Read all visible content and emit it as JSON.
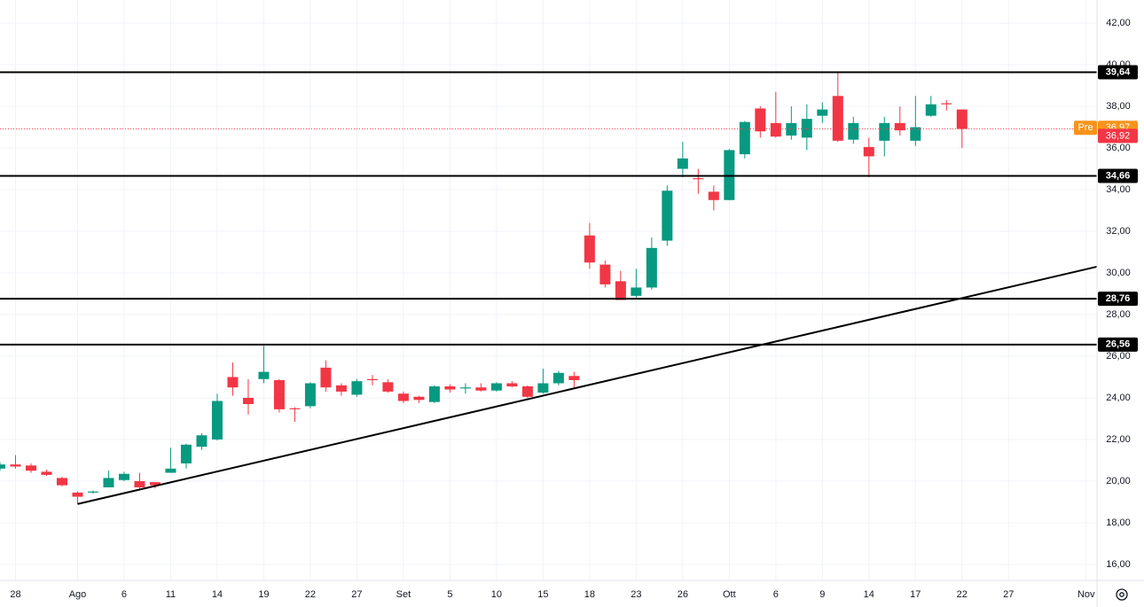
{
  "chart_data": {
    "type": "candlestick",
    "x": [
      -1,
      0,
      1,
      2,
      3,
      4,
      5,
      6,
      7,
      8,
      9,
      10,
      11,
      12,
      13,
      14,
      15,
      16,
      17,
      18,
      19,
      20,
      21,
      22,
      23,
      24,
      25,
      26,
      27,
      28,
      29,
      30,
      31,
      32,
      33,
      34,
      35,
      36,
      37,
      38,
      39,
      40,
      41,
      42,
      43,
      44,
      45,
      46,
      47,
      48,
      49,
      50,
      51,
      52,
      53,
      54,
      55,
      56,
      57,
      58,
      59,
      60,
      61
    ],
    "open": [
      20.6,
      20.8,
      20.75,
      20.45,
      20.15,
      19.45,
      19.45,
      19.7,
      20.05,
      20.0,
      19.95,
      20.4,
      20.85,
      21.65,
      22.0,
      25.0,
      24.0,
      24.9,
      24.85,
      23.5,
      23.6,
      25.45,
      24.6,
      24.15,
      24.9,
      24.75,
      24.2,
      24.05,
      23.8,
      24.55,
      24.45,
      24.5,
      24.35,
      24.7,
      24.55,
      24.25,
      24.7,
      25.05,
      31.8,
      30.4,
      29.6,
      28.9,
      29.3,
      31.55,
      35.0,
      34.55,
      33.9,
      33.5,
      35.7,
      37.9,
      37.2,
      36.6,
      36.5,
      37.55,
      38.5,
      36.4,
      36.05,
      36.35,
      37.2,
      36.35,
      37.55,
      38.15,
      37.85
    ],
    "high": [
      20.9,
      21.25,
      20.85,
      20.55,
      20.2,
      19.5,
      19.55,
      20.5,
      20.45,
      20.4,
      19.95,
      21.6,
      21.8,
      22.3,
      24.2,
      25.7,
      24.9,
      26.5,
      24.9,
      23.55,
      24.75,
      25.8,
      24.7,
      24.9,
      25.1,
      24.9,
      24.3,
      24.1,
      24.6,
      24.65,
      24.7,
      24.7,
      24.75,
      24.8,
      24.6,
      25.4,
      25.3,
      25.25,
      32.4,
      30.6,
      30.1,
      30.2,
      31.7,
      34.2,
      36.3,
      35.0,
      34.2,
      35.95,
      37.3,
      38.0,
      38.7,
      38.0,
      38.1,
      38.2,
      39.64,
      37.5,
      36.5,
      37.5,
      38.0,
      38.5,
      38.5,
      38.3,
      37.85
    ],
    "low": [
      20.5,
      20.6,
      20.4,
      20.25,
      19.75,
      18.9,
      19.4,
      19.7,
      20.0,
      19.6,
      19.65,
      20.4,
      20.6,
      21.5,
      21.95,
      24.1,
      23.2,
      24.7,
      23.3,
      22.85,
      23.5,
      24.3,
      24.1,
      24.05,
      24.6,
      24.25,
      23.75,
      23.75,
      23.75,
      24.25,
      24.2,
      24.3,
      24.3,
      24.5,
      24.0,
      24.2,
      24.6,
      24.5,
      30.2,
      29.3,
      28.7,
      28.75,
      29.2,
      31.3,
      34.6,
      33.8,
      33.0,
      33.5,
      35.5,
      36.5,
      36.5,
      36.4,
      35.9,
      37.2,
      36.3,
      36.2,
      34.6,
      35.6,
      36.6,
      36.1,
      37.5,
      37.8,
      36.0
    ],
    "close": [
      20.8,
      20.7,
      20.5,
      20.3,
      19.8,
      19.25,
      19.5,
      20.15,
      20.35,
      19.7,
      19.8,
      20.6,
      21.75,
      22.2,
      23.85,
      24.5,
      23.7,
      25.25,
      23.45,
      23.45,
      24.7,
      24.5,
      24.3,
      24.8,
      24.85,
      24.3,
      23.85,
      23.9,
      24.55,
      24.4,
      24.5,
      24.35,
      24.7,
      24.55,
      24.05,
      24.7,
      25.2,
      24.85,
      30.5,
      29.45,
      28.7,
      29.3,
      31.2,
      33.95,
      35.5,
      34.5,
      33.5,
      35.9,
      37.25,
      36.8,
      36.55,
      37.2,
      37.4,
      37.85,
      36.35,
      37.2,
      35.6,
      37.2,
      36.85,
      37.0,
      38.1,
      38.1,
      36.92
    ],
    "up_color": "#089981",
    "down_color": "#f23645",
    "xlim": [
      -1,
      69.7
    ],
    "ylim": [
      15.23,
      43.11
    ],
    "xticks": [
      {
        "value": 0,
        "label": "28"
      },
      {
        "value": 4,
        "label": "Ago"
      },
      {
        "value": 7,
        "label": "6"
      },
      {
        "value": 10,
        "label": "11"
      },
      {
        "value": 13,
        "label": "14"
      },
      {
        "value": 16,
        "label": "19"
      },
      {
        "value": 19,
        "label": "22"
      },
      {
        "value": 22,
        "label": "27"
      },
      {
        "value": 25,
        "label": "Set"
      },
      {
        "value": 28,
        "label": "5"
      },
      {
        "value": 31,
        "label": "10"
      },
      {
        "value": 34,
        "label": "15"
      },
      {
        "value": 37,
        "label": "18"
      },
      {
        "value": 40,
        "label": "23"
      },
      {
        "value": 43,
        "label": "26"
      },
      {
        "value": 46,
        "label": "Ott"
      },
      {
        "value": 49,
        "label": "6"
      },
      {
        "value": 52,
        "label": "9"
      },
      {
        "value": 55,
        "label": "14"
      },
      {
        "value": 58,
        "label": "17"
      },
      {
        "value": 61,
        "label": "22"
      },
      {
        "value": 64,
        "label": "27"
      },
      {
        "value": 69,
        "label": "Nov"
      }
    ],
    "yticks": [
      {
        "value": 16,
        "label": "16,00"
      },
      {
        "value": 18,
        "label": "18,00"
      },
      {
        "value": 20,
        "label": "20,00"
      },
      {
        "value": 22,
        "label": "22,00"
      },
      {
        "value": 24,
        "label": "24,00"
      },
      {
        "value": 26,
        "label": "26,00"
      },
      {
        "value": 28,
        "label": "28,00"
      },
      {
        "value": 30,
        "label": "30,00"
      },
      {
        "value": 32,
        "label": "32,00"
      },
      {
        "value": 34,
        "label": "34,00"
      },
      {
        "value": 36,
        "label": "36,00"
      },
      {
        "value": 38,
        "label": "38,00"
      },
      {
        "value": 40,
        "label": "40,00"
      },
      {
        "value": 42,
        "label": "42,00"
      }
    ],
    "grid": true,
    "levels": [
      {
        "value": 39.64,
        "label": "39,64"
      },
      {
        "value": 34.66,
        "label": "34,66"
      },
      {
        "value": 28.76,
        "label": "28,76"
      },
      {
        "value": 26.56,
        "label": "26,56"
      }
    ],
    "trendline": {
      "x": [
        4,
        69.7
      ],
      "y": [
        18.9,
        30.3
      ]
    },
    "pre_market": {
      "tag": "Pre",
      "value": 36.97,
      "label": "36,97",
      "color": "#f7931a"
    },
    "last_price": {
      "value": 36.92,
      "label": "36,92",
      "color": "#f23645"
    }
  }
}
